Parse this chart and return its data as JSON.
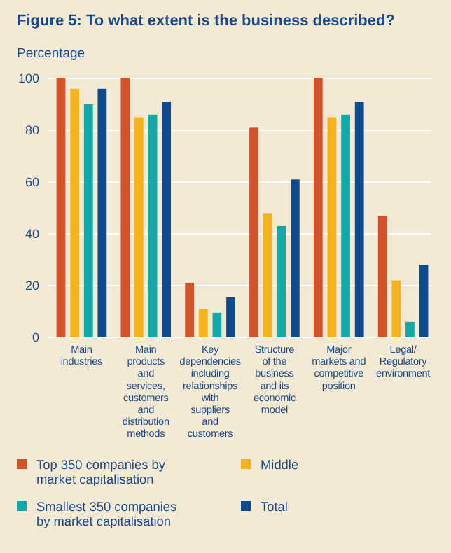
{
  "chart_data": {
    "type": "bar",
    "title": "Figure 5: To what extent is the business described?",
    "ylabel": "Percentage",
    "categories": [
      "Main industries",
      "Main products and services, customers and distribution methods",
      "Key dependencies including relationships with suppliers and customers",
      "Structure of the business and its economic model",
      "Major markets and competitive position",
      "Legal/ Regulatory environment"
    ],
    "series": [
      {
        "name": "Top 350 companies by market capitalisation",
        "color": "#d4532a",
        "values": [
          100,
          100,
          21,
          81,
          100,
          47
        ]
      },
      {
        "name": "Middle",
        "color": "#f5b21d",
        "values": [
          96,
          85,
          11,
          48,
          85,
          22
        ]
      },
      {
        "name": "Smallest 350 companies by market capitalisation",
        "color": "#12aaa8",
        "values": [
          90,
          86,
          9.5,
          43,
          86,
          6
        ]
      },
      {
        "name": "Total",
        "color": "#0e4a8e",
        "values": [
          96,
          91,
          15.5,
          61,
          91,
          28
        ]
      }
    ],
    "ylim": [
      0,
      100
    ],
    "yticks": [
      0,
      20,
      40,
      60,
      80,
      100
    ],
    "grid": "y",
    "legend": "bottom"
  }
}
